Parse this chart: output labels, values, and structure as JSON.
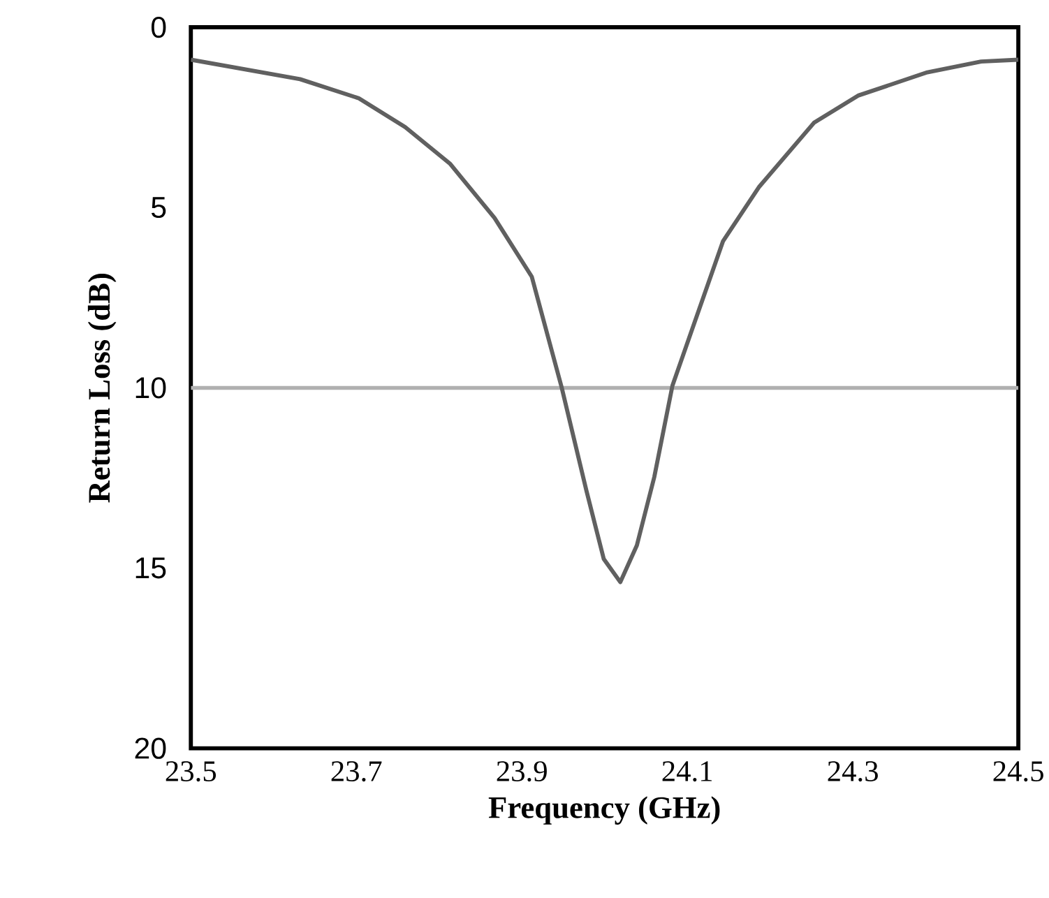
{
  "chart_data": {
    "type": "line",
    "xlabel": "Frequency (GHz)",
    "ylabel": "Return  Loss (dB)",
    "series": [
      {
        "color": "#606060",
        "x": [
          23.5,
          23.632,
          23.703,
          23.759,
          23.813,
          23.867,
          23.912,
          23.948,
          23.978,
          23.999,
          24.019,
          24.039,
          24.06,
          24.082,
          24.105,
          24.143,
          24.187,
          24.253,
          24.307,
          24.39,
          24.455,
          24.5
        ],
        "values": [
          0.9,
          1.44,
          1.97,
          2.77,
          3.78,
          5.29,
          6.92,
          9.98,
          12.85,
          14.75,
          15.39,
          14.37,
          12.48,
          9.94,
          8.43,
          5.94,
          4.42,
          2.65,
          1.89,
          1.25,
          0.95,
          0.9
        ]
      }
    ],
    "xlim": [
      23.5,
      24.5
    ],
    "xticks": [
      23.5,
      23.7,
      23.9,
      24.1,
      24.3,
      24.5
    ],
    "ylim": [
      20,
      0
    ],
    "yticks": [
      0,
      5,
      10,
      15,
      20
    ],
    "ref_lines": [
      {
        "axis": "y",
        "value": 10,
        "color": "#b0b0b0"
      }
    ],
    "marker": "none",
    "line_style": "solid"
  }
}
